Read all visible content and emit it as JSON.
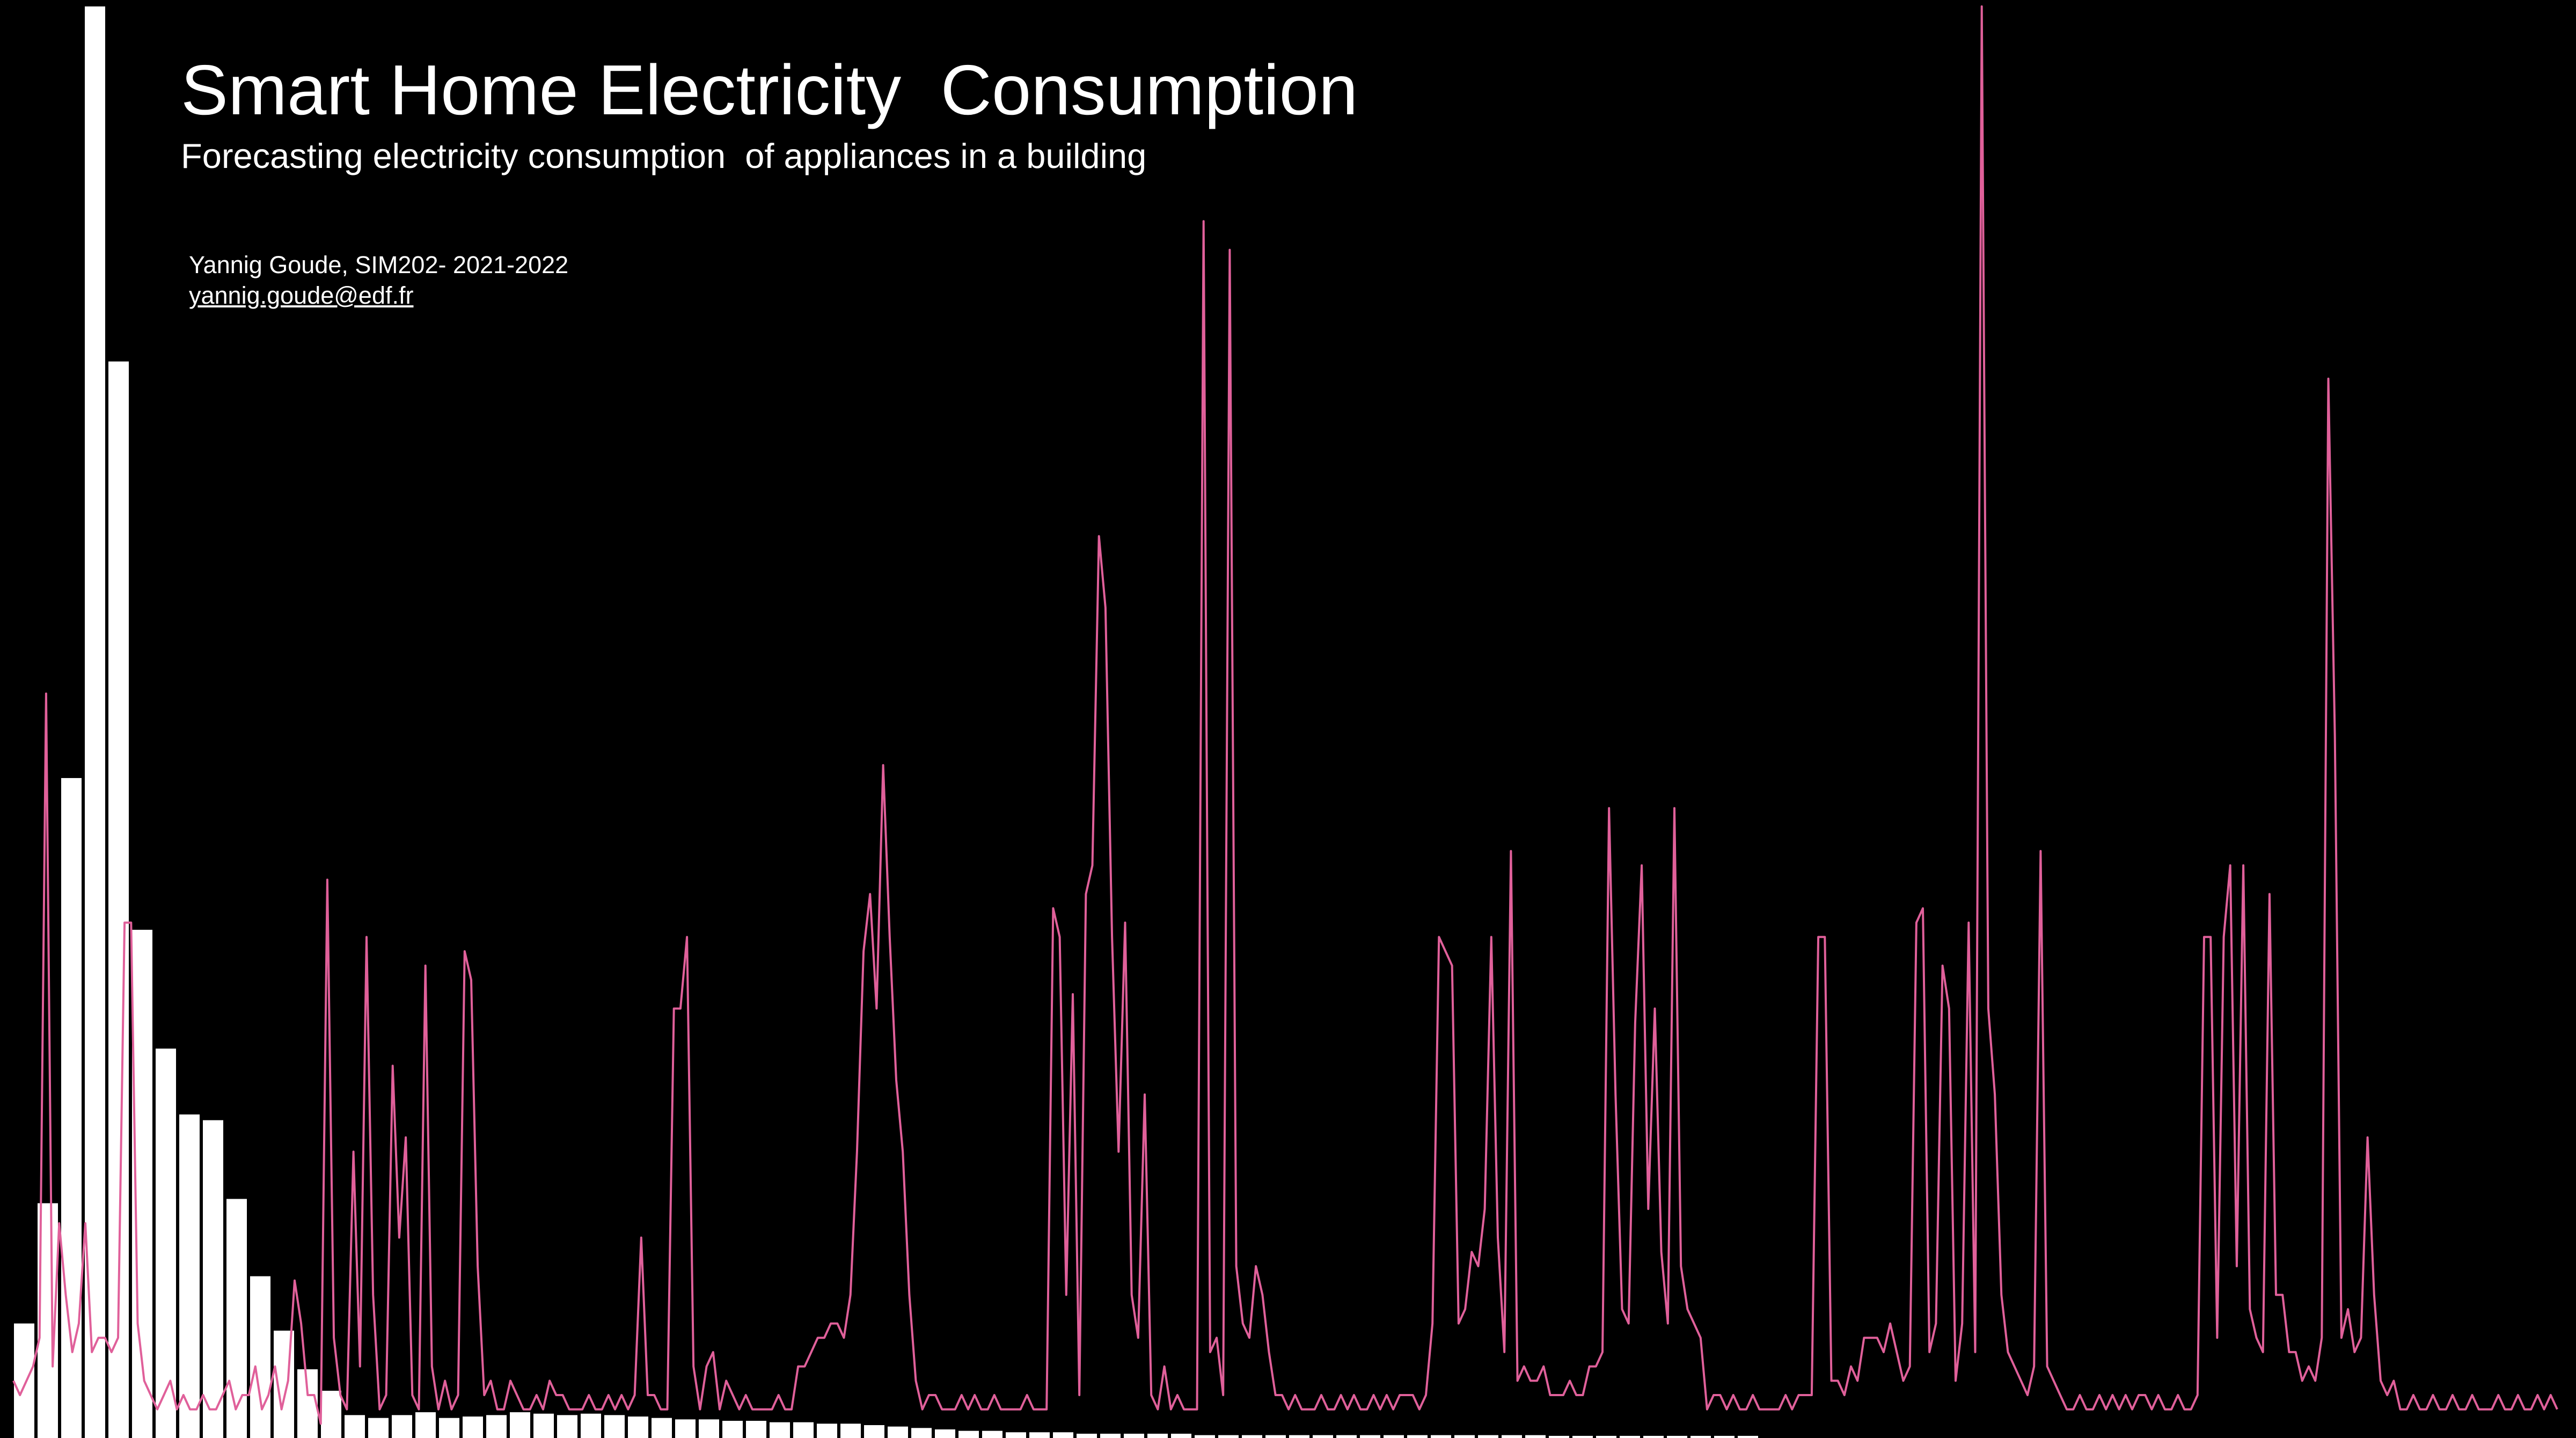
{
  "slide": {
    "title": "Smart Home Electricity  Consumption",
    "subtitle": "Forecasting electricity consumption  of appliances in a building",
    "author_line": "Yannig Goude, SIM202- 2021-2022",
    "email": "yannig.goude@edf.fr"
  },
  "colors": {
    "background": "#000000",
    "text": "#ffffff",
    "bars": "#ffffff",
    "line": "#e0609a"
  },
  "chart_data": [
    {
      "type": "bar",
      "values": [
        0.08,
        0.164,
        0.461,
        1.0,
        0.752,
        0.355,
        0.272,
        0.226,
        0.222,
        0.167,
        0.113,
        0.075,
        0.048,
        0.033,
        0.016,
        0.014,
        0.016,
        0.018,
        0.014,
        0.015,
        0.016,
        0.018,
        0.017,
        0.016,
        0.017,
        0.016,
        0.015,
        0.014,
        0.013,
        0.013,
        0.012,
        0.012,
        0.011,
        0.011,
        0.01,
        0.01,
        0.009,
        0.008,
        0.007,
        0.006,
        0.005,
        0.005,
        0.004,
        0.004,
        0.004,
        0.003,
        0.003,
        0.003,
        0.003,
        0.003,
        0.002,
        0.002,
        0.002,
        0.002,
        0.002,
        0.002,
        0.002,
        0.002,
        0.002,
        0.002,
        0.002,
        0.002,
        0.002,
        0.002,
        0.002,
        0.001,
        0.001,
        0.001,
        0.001,
        0.001,
        0.001,
        0.001,
        0.001,
        0.001
      ]
    },
    {
      "type": "line",
      "y": [
        0.04,
        0.03,
        0.04,
        0.05,
        0.07,
        0.52,
        0.05,
        0.15,
        0.1,
        0.06,
        0.08,
        0.15,
        0.06,
        0.07,
        0.07,
        0.06,
        0.07,
        0.36,
        0.36,
        0.08,
        0.04,
        0.03,
        0.02,
        0.03,
        0.04,
        0.02,
        0.03,
        0.02,
        0.02,
        0.03,
        0.02,
        0.02,
        0.03,
        0.04,
        0.02,
        0.03,
        0.03,
        0.05,
        0.02,
        0.03,
        0.05,
        0.02,
        0.04,
        0.11,
        0.08,
        0.03,
        0.03,
        0.01,
        0.39,
        0.07,
        0.03,
        0.02,
        0.2,
        0.05,
        0.35,
        0.1,
        0.02,
        0.03,
        0.26,
        0.14,
        0.21,
        0.03,
        0.02,
        0.33,
        0.05,
        0.02,
        0.04,
        0.02,
        0.03,
        0.34,
        0.32,
        0.12,
        0.03,
        0.04,
        0.02,
        0.02,
        0.04,
        0.03,
        0.02,
        0.02,
        0.03,
        0.02,
        0.04,
        0.03,
        0.03,
        0.02,
        0.02,
        0.02,
        0.03,
        0.02,
        0.02,
        0.03,
        0.02,
        0.03,
        0.02,
        0.03,
        0.14,
        0.03,
        0.03,
        0.02,
        0.02,
        0.3,
        0.3,
        0.35,
        0.05,
        0.02,
        0.05,
        0.06,
        0.02,
        0.04,
        0.03,
        0.02,
        0.03,
        0.02,
        0.02,
        0.02,
        0.02,
        0.03,
        0.02,
        0.02,
        0.05,
        0.05,
        0.06,
        0.07,
        0.07,
        0.08,
        0.08,
        0.07,
        0.1,
        0.2,
        0.34,
        0.38,
        0.3,
        0.47,
        0.35,
        0.25,
        0.2,
        0.1,
        0.04,
        0.02,
        0.03,
        0.03,
        0.02,
        0.02,
        0.02,
        0.03,
        0.02,
        0.03,
        0.02,
        0.02,
        0.03,
        0.02,
        0.02,
        0.02,
        0.02,
        0.03,
        0.02,
        0.02,
        0.02,
        0.37,
        0.35,
        0.1,
        0.31,
        0.03,
        0.38,
        0.4,
        0.63,
        0.58,
        0.35,
        0.2,
        0.36,
        0.1,
        0.07,
        0.24,
        0.03,
        0.02,
        0.05,
        0.02,
        0.03,
        0.02,
        0.02,
        0.02,
        0.85,
        0.06,
        0.07,
        0.03,
        0.83,
        0.12,
        0.08,
        0.07,
        0.12,
        0.1,
        0.06,
        0.03,
        0.03,
        0.02,
        0.03,
        0.02,
        0.02,
        0.02,
        0.03,
        0.02,
        0.02,
        0.03,
        0.02,
        0.03,
        0.02,
        0.02,
        0.03,
        0.02,
        0.03,
        0.02,
        0.03,
        0.03,
        0.03,
        0.02,
        0.03,
        0.08,
        0.35,
        0.34,
        0.33,
        0.08,
        0.09,
        0.13,
        0.12,
        0.16,
        0.35,
        0.14,
        0.06,
        0.41,
        0.04,
        0.05,
        0.04,
        0.04,
        0.05,
        0.03,
        0.03,
        0.03,
        0.04,
        0.03,
        0.03,
        0.05,
        0.05,
        0.06,
        0.44,
        0.24,
        0.09,
        0.08,
        0.29,
        0.4,
        0.16,
        0.3,
        0.13,
        0.08,
        0.44,
        0.12,
        0.09,
        0.08,
        0.07,
        0.02,
        0.03,
        0.03,
        0.02,
        0.03,
        0.02,
        0.02,
        0.03,
        0.02,
        0.02,
        0.02,
        0.02,
        0.03,
        0.02,
        0.03,
        0.03,
        0.03,
        0.35,
        0.35,
        0.04,
        0.04,
        0.03,
        0.05,
        0.04,
        0.07,
        0.07,
        0.07,
        0.06,
        0.08,
        0.06,
        0.04,
        0.05,
        0.36,
        0.37,
        0.06,
        0.08,
        0.33,
        0.3,
        0.04,
        0.08,
        0.36,
        0.06,
        1.0,
        0.3,
        0.24,
        0.1,
        0.06,
        0.05,
        0.04,
        0.03,
        0.05,
        0.41,
        0.05,
        0.04,
        0.03,
        0.02,
        0.02,
        0.03,
        0.02,
        0.02,
        0.03,
        0.02,
        0.03,
        0.02,
        0.03,
        0.02,
        0.03,
        0.03,
        0.02,
        0.03,
        0.02,
        0.02,
        0.03,
        0.02,
        0.02,
        0.03,
        0.35,
        0.35,
        0.07,
        0.35,
        0.4,
        0.12,
        0.4,
        0.09,
        0.07,
        0.06,
        0.38,
        0.1,
        0.1,
        0.06,
        0.06,
        0.04,
        0.05,
        0.04,
        0.07,
        0.74,
        0.49,
        0.07,
        0.09,
        0.06,
        0.07,
        0.21,
        0.1,
        0.04,
        0.03,
        0.04,
        0.02,
        0.02,
        0.03,
        0.02,
        0.02,
        0.03,
        0.02,
        0.02,
        0.03,
        0.02,
        0.02,
        0.03,
        0.02,
        0.02,
        0.02,
        0.03,
        0.02,
        0.02,
        0.03,
        0.02,
        0.02,
        0.03,
        0.02,
        0.03,
        0.02
      ]
    }
  ]
}
